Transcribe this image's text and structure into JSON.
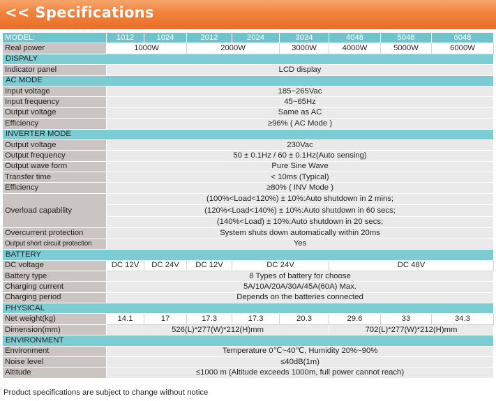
{
  "banner": {
    "title": "<< Specifications"
  },
  "model": {
    "label": "MODEL:",
    "ids": [
      "1012",
      "1024",
      "2012",
      "2024",
      "3024",
      "4048",
      "5048",
      "6048"
    ]
  },
  "real_power": {
    "label": "Real power",
    "values": [
      "1000W",
      "2000W",
      "3000W",
      "4000W",
      "5000W",
      "6000W"
    ]
  },
  "display": {
    "header": "DISPALY",
    "indicator_label": "Indicator panel",
    "indicator_value": "LCD display"
  },
  "ac_mode": {
    "header": "AC MODE",
    "rows": [
      {
        "label": "Input voltage",
        "value": "185~265Vac"
      },
      {
        "label": "Input frequency",
        "value": "45~65Hz"
      },
      {
        "label": "Output voltage",
        "value": "Same as AC"
      },
      {
        "label": "Efficiency",
        "value": "≥96% ( AC Mode )"
      }
    ]
  },
  "inverter_mode": {
    "header": " INVERTER MODE",
    "rows": [
      {
        "label": "Output voltage",
        "value": "230Vac"
      },
      {
        "label": "Output frequency",
        "value": "50 ± 0.1Hz / 60 ± 0.1Hz(Auto sensing)"
      },
      {
        "label": "Output wave form",
        "value": "Pure Sine Wave"
      },
      {
        "label": "Transfer time",
        "value": "< 10ms (Typical)"
      },
      {
        "label": "Efficiency",
        "value": "≥80% ( INV Mode )"
      }
    ],
    "overload_label": "Overload capability",
    "overload_lines": [
      "(100%<Load<120%) ± 10%:Auto shutdown in 2 mins;",
      "(120%<Load<140%) ± 10%:Auto shutdown in 60 secs;",
      "(140%<Load) ± 10%:Auto shutdown in 20 secs;"
    ],
    "overcurrent_label": "Overcurrent protection",
    "overcurrent_value": "System shuts down automatically within 20ms",
    "short_label": "Output short circuit protection",
    "short_value": "Yes"
  },
  "battery": {
    "header": "BATTERY",
    "voltage_label": "DC voltage",
    "voltage_values": [
      "DC 12V",
      "DC 24V",
      "DC 12V",
      "DC 24V",
      "DC 48V"
    ],
    "rows": [
      {
        "label": "Battery type",
        "value": "8 Types of battery for choose"
      },
      {
        "label": "Charging current",
        "value": "5A/10A/20A/30A/45A(60A) Max."
      },
      {
        "label": "Charging period",
        "value": "Depends on the batteries connected"
      }
    ]
  },
  "physical": {
    "header": "PHYSICAL",
    "weight_label": "Net weight(kg)",
    "weights": [
      "14.1",
      "17",
      "17.3",
      "17.3",
      "20.3",
      "29.6",
      "33",
      "34.3"
    ],
    "dimension_label": "Dimension(mm)",
    "dimensions": [
      "526(L)*277(W)*212(H)mm",
      "702(L)*277(W)*212(H)mm"
    ]
  },
  "environment": {
    "header": "ENVIRONMENT",
    "rows": [
      {
        "label": "Environment",
        "value": "Temperature 0℃~40℃, Humidity 20%~90%"
      },
      {
        "label": "Noise level",
        "value": "≤40dB(1m)"
      },
      {
        "label": "Altitude",
        "value": "≤1000 m (Altitude exceeds 1000m, full power cannot reach)"
      }
    ]
  },
  "footnote": "Product specifications are subject to change without notice",
  "colors": {
    "banner_orange": "#ea6f26",
    "section_teal": "#7bcdd3",
    "label_gray": "#cac4c2",
    "value_gray": "#eaeaea"
  }
}
